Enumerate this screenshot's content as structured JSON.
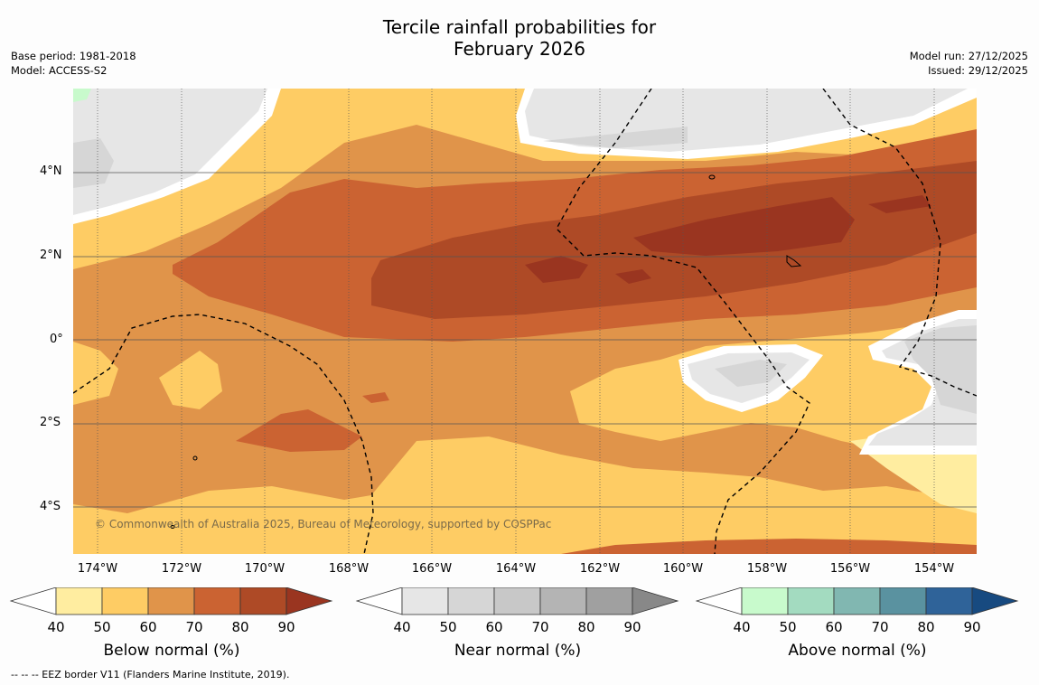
{
  "title_line1": "Tercile rainfall probabilities for",
  "title_line2": "February 2026",
  "meta_left": {
    "base_period": "Base period: 1981-2018",
    "model": "Model: ACCESS-S2"
  },
  "meta_right": {
    "model_run": "Model run: 27/12/2025",
    "issued": "Issued: 29/12/2025"
  },
  "copyright": "© Commonwealth of Australia 2025, Bureau of Meteorology, supported by COSPPac",
  "lat_labels": [
    "4°N",
    "2°N",
    "0°",
    "2°S",
    "4°S"
  ],
  "lon_labels": [
    "174°W",
    "172°W",
    "170°W",
    "168°W",
    "166°W",
    "164°W",
    "162°W",
    "160°W",
    "158°W",
    "156°W",
    "154°W"
  ],
  "colorbars": [
    {
      "title": "Below normal (%)",
      "ticks": [
        "40",
        "50",
        "60",
        "70",
        "80",
        "90"
      ],
      "colors": [
        "#ffffff",
        "#ffeda0",
        "#fecc64",
        "#e0944a",
        "#cb6332",
        "#ae4a26",
        "#9a3520"
      ]
    },
    {
      "title": "Near normal (%)",
      "ticks": [
        "40",
        "50",
        "60",
        "70",
        "80",
        "90"
      ],
      "colors": [
        "#ffffff",
        "#e6e6e6",
        "#d6d6d6",
        "#c8c8c8",
        "#b4b4b4",
        "#a0a0a0",
        "#888888"
      ]
    },
    {
      "title": "Above normal (%)",
      "ticks": [
        "40",
        "50",
        "60",
        "70",
        "80",
        "90"
      ],
      "colors": [
        "#ffffff",
        "#c8facc",
        "#a3dbc0",
        "#81b7b1",
        "#5a92a0",
        "#2f6399",
        "#174a80"
      ]
    }
  ],
  "footer": "--  --  -- EEZ border V11 (Flanders Marine Institute, 2019)."
}
